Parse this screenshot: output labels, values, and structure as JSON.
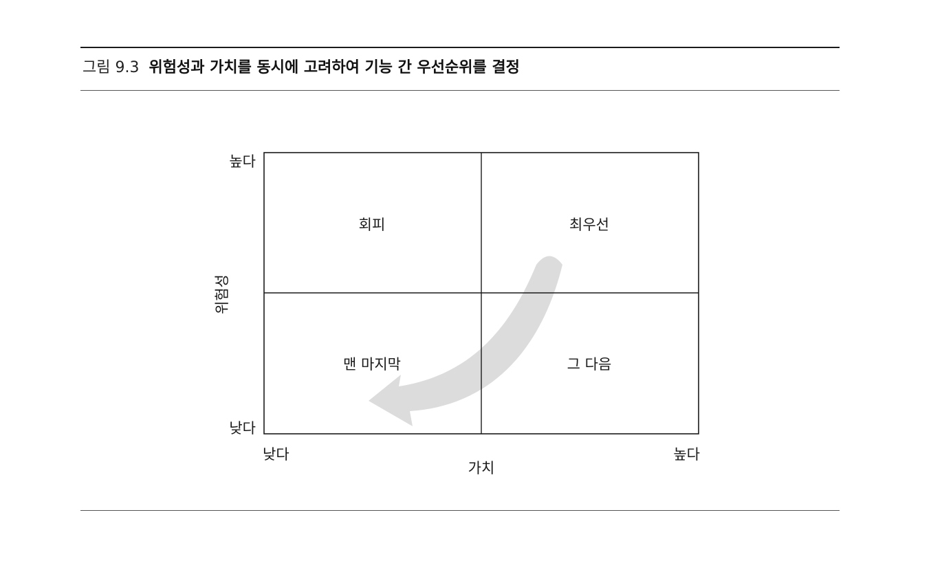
{
  "caption": {
    "label": "그림 9.3",
    "title": "위험성과 가치를 동시에 고려하여 기능 간 우선순위를 결정"
  },
  "diagram": {
    "y_axis": {
      "title": "위험성",
      "high_label": "높다",
      "low_label": "낮다"
    },
    "x_axis": {
      "title": "가치",
      "low_label": "낮다",
      "high_label": "높다"
    },
    "quadrants": {
      "top_left": "회피",
      "top_right": "최우선",
      "bottom_left": "맨 마지막",
      "bottom_right": "그 다음"
    },
    "arrow_color": "#dcdcdc"
  }
}
